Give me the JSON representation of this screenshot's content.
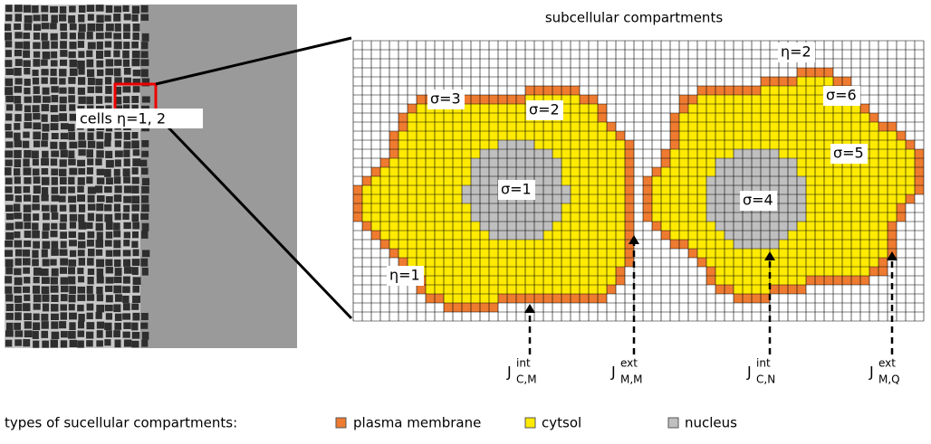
{
  "title": "subcellular compartments",
  "cells_label": "cells η=1, 2",
  "cell_labels": [
    "η=1",
    "η=2"
  ],
  "compartment_labels": [
    "σ=1",
    "σ=2",
    "σ=3",
    "σ=4",
    "σ=5",
    "σ=6"
  ],
  "energy_labels": [
    {
      "base": "J",
      "sup": "int",
      "sub": "C,M"
    },
    {
      "base": "J",
      "sup": "ext",
      "sub": "M,M"
    },
    {
      "base": "J",
      "sup": "int",
      "sub": "C,N"
    },
    {
      "base": "J",
      "sup": "ext",
      "sub": "M,Q"
    }
  ],
  "legend": {
    "title": "types of sucellular compartments:",
    "items": [
      "plasma membrane",
      "cytsol",
      "nucleus"
    ]
  }
}
